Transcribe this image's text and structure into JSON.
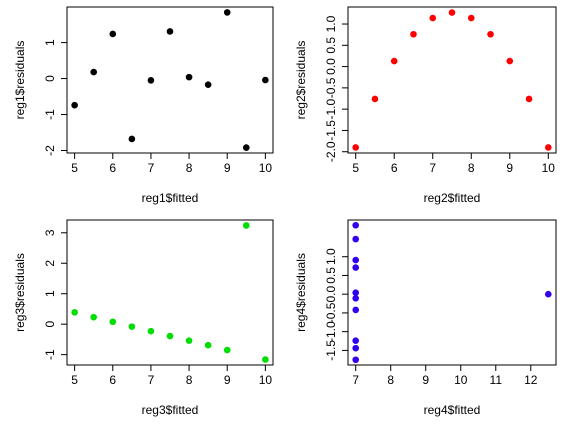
{
  "chart_data": [
    {
      "type": "scatter",
      "x_label": "reg1$fitted",
      "y_label": "reg1$residuals",
      "color": "#000000",
      "x": [
        5,
        5.5,
        6,
        6.5,
        7,
        7.5,
        8,
        8.5,
        9,
        9.5,
        10
      ],
      "values": [
        -0.74,
        0.18,
        1.24,
        -1.68,
        -0.05,
        1.31,
        0.04,
        -0.17,
        1.84,
        -1.92,
        -0.04
      ],
      "xlim": [
        4.8,
        10.2
      ],
      "ylim": [
        -2.07,
        1.99
      ],
      "xticks": [
        5,
        6,
        7,
        8,
        9,
        10
      ],
      "yticks": [
        -2,
        -1,
        0,
        1
      ]
    },
    {
      "type": "scatter",
      "x_label": "reg2$fitted",
      "y_label": "reg2$residuals",
      "color": "#ff0000",
      "x": [
        5,
        5.5,
        6,
        6.5,
        7,
        7.5,
        8,
        8.5,
        9,
        9.5,
        10
      ],
      "values": [
        -1.9,
        -0.76,
        0.13,
        0.76,
        1.14,
        1.27,
        1.14,
        0.76,
        0.13,
        -0.76,
        -1.9
      ],
      "xlim": [
        4.8,
        10.2
      ],
      "ylim": [
        -2.03,
        1.4
      ],
      "xticks": [
        5,
        6,
        7,
        8,
        9,
        10
      ],
      "yticks": [
        {
          "value": -2,
          "label": "-2.0"
        },
        {
          "value": -1.5,
          "label": "-1.5"
        },
        {
          "value": -1,
          "label": "-1.0"
        },
        {
          "value": -0.5,
          "label": "-0.5"
        },
        {
          "value": 0,
          "label": "0.0"
        },
        {
          "value": 0.5,
          "label": "0.5"
        },
        {
          "value": 1,
          "label": "1.0"
        }
      ]
    },
    {
      "type": "scatter",
      "x_label": "reg3$fitted",
      "y_label": "reg3$residuals",
      "color": "#00dd00",
      "x": [
        5,
        5.5,
        6,
        6.5,
        7,
        7.5,
        8,
        8.5,
        9,
        9.5,
        10
      ],
      "values": [
        0.39,
        0.23,
        0.08,
        -0.08,
        -0.23,
        -0.39,
        -0.54,
        -0.69,
        -0.85,
        3.24,
        -1.16
      ],
      "xlim": [
        4.8,
        10.2
      ],
      "ylim": [
        -1.34,
        3.42
      ],
      "xticks": [
        5,
        6,
        7,
        8,
        9,
        10
      ],
      "yticks": [
        -1,
        0,
        1,
        2,
        3
      ]
    },
    {
      "type": "scatter",
      "x_label": "reg4$fitted",
      "y_label": "reg4$residuals",
      "color": "#3300ee",
      "x": [
        7,
        7,
        7,
        7,
        7,
        7,
        7,
        12.5,
        7,
        7,
        7
      ],
      "values": [
        -0.42,
        -1.24,
        0.71,
        1.84,
        1.47,
        0.04,
        -1.75,
        0,
        -1.44,
        0.91,
        -0.11
      ],
      "xlim": [
        6.78,
        12.72
      ],
      "ylim": [
        -1.89,
        1.98
      ],
      "xticks": [
        7,
        8,
        9,
        10,
        11,
        12
      ],
      "yticks": [
        {
          "value": -1.5,
          "label": "-1.5"
        },
        {
          "value": -1,
          "label": "-1.0"
        },
        {
          "value": -0.5,
          "label": "-0.5"
        },
        {
          "value": 0,
          "label": "0.0"
        },
        {
          "value": 0.5,
          "label": "0.5"
        },
        {
          "value": 1,
          "label": "1.0"
        }
      ]
    }
  ]
}
